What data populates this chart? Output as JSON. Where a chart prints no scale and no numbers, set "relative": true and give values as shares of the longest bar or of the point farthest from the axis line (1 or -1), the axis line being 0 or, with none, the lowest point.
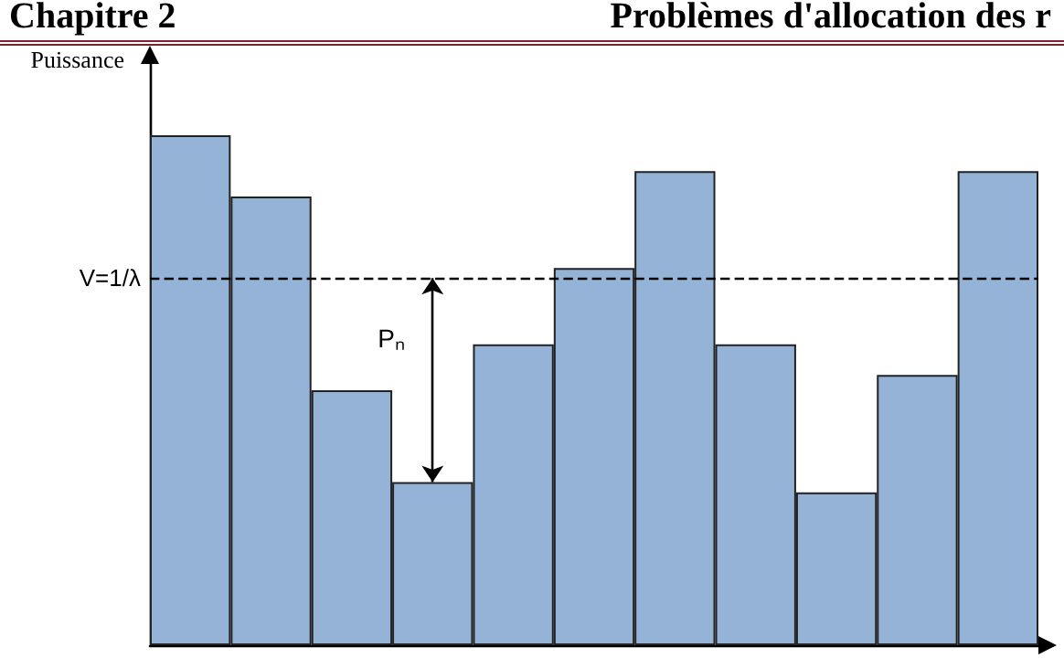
{
  "chart_data": {
    "type": "bar",
    "title": "Chapitre 2",
    "subtitle": "Problèmes d'allocation des r",
    "ylabel": "Puissance",
    "relative": true,
    "categories": [
      null,
      null,
      null,
      null,
      null,
      null,
      null,
      null,
      null,
      null,
      null
    ],
    "values": [
      1,
      0.88,
      0.5,
      0.32,
      0.59,
      0.74,
      0.93,
      0.59,
      0.3,
      0.53,
      0.93
    ],
    "color": "#95b3d7",
    "ref_lines": [
      {
        "axis": "y",
        "value": 0.72,
        "label": "V=1/λ",
        "color": "#000000",
        "line_style": "dashed"
      }
    ],
    "annotations": [
      "Pₙ"
    ],
    "grid": false
  }
}
